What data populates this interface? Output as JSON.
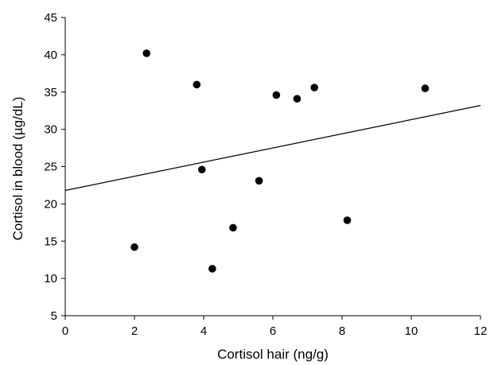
{
  "chart_data": {
    "type": "scatter",
    "xlabel": "Cortisol hair (ng/g)",
    "ylabel": "Cortisol in blood (µg/dL)",
    "xlim": [
      0,
      12
    ],
    "ylim": [
      5,
      45
    ],
    "xticks": [
      0,
      2,
      4,
      6,
      8,
      10,
      12
    ],
    "yticks": [
      5,
      10,
      15,
      20,
      25,
      30,
      35,
      40,
      45
    ],
    "grid": false,
    "legend": "none",
    "marker_color": "#000000",
    "series": [
      {
        "points": [
          {
            "x": 2.0,
            "y": 14.2
          },
          {
            "x": 2.35,
            "y": 40.2
          },
          {
            "x": 3.8,
            "y": 36.0
          },
          {
            "x": 3.95,
            "y": 24.6
          },
          {
            "x": 4.25,
            "y": 11.3
          },
          {
            "x": 4.85,
            "y": 16.8
          },
          {
            "x": 5.6,
            "y": 23.1
          },
          {
            "x": 6.1,
            "y": 34.6
          },
          {
            "x": 6.7,
            "y": 34.1
          },
          {
            "x": 7.2,
            "y": 35.6
          },
          {
            "x": 8.15,
            "y": 17.8
          },
          {
            "x": 10.4,
            "y": 35.5
          }
        ]
      }
    ],
    "trendline": {
      "x": [
        0,
        12
      ],
      "y": [
        21.8,
        33.2
      ]
    }
  }
}
